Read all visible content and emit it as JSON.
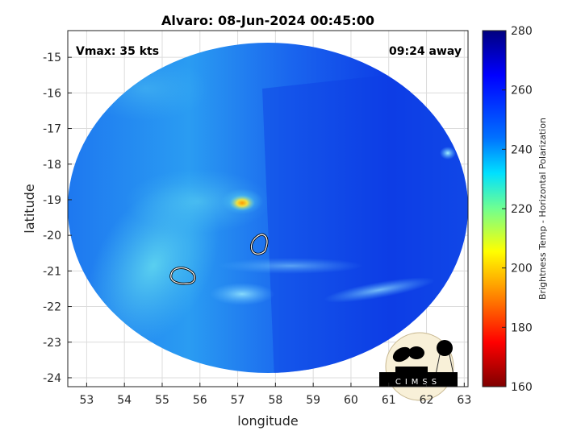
{
  "chart_data": {
    "type": "heatmap",
    "title": "Alvaro: 08-Jun-2024 00:45:00",
    "xlabel": "longitude",
    "ylabel": "latitude",
    "xlim": [
      52.5,
      63.1
    ],
    "ylim": [
      -24.25,
      -14.25
    ],
    "xticks": [
      53,
      54,
      55,
      56,
      57,
      58,
      59,
      60,
      61,
      62,
      63
    ],
    "yticks": [
      -15,
      -16,
      -17,
      -18,
      -19,
      -20,
      -21,
      -22,
      -23,
      -24
    ],
    "grid": true,
    "annotations": {
      "left": "Vmax: 35 kts",
      "right": "09:24 away"
    },
    "colorbar": {
      "label": "Brightness Temp - Horizontal Polarization",
      "range": [
        160,
        280
      ],
      "ticks": [
        160,
        180,
        200,
        220,
        240,
        260,
        280
      ],
      "colormap": "jet"
    },
    "features": [
      {
        "kind": "warm-spot",
        "lon": 57.1,
        "lat": -19.1,
        "value": 205
      },
      {
        "kind": "contour",
        "lon": 57.6,
        "lat": -20.3
      },
      {
        "kind": "contour",
        "lon": 55.6,
        "lat": -21.1
      }
    ]
  },
  "logo": {
    "text": "CIMSS"
  }
}
